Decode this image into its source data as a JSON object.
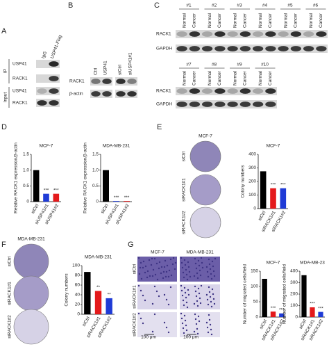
{
  "panels": {
    "A": {
      "letter": "A",
      "columns": [
        "IgG",
        "USP41-Flag"
      ],
      "rows": [
        "USP41",
        "RACK1",
        "USP41",
        "RACK1"
      ],
      "groups": [
        "IP",
        "Input"
      ]
    },
    "B": {
      "letter": "B",
      "columns": [
        "Ctrl",
        "USP41",
        "siCtrl",
        "siUSP41#1"
      ],
      "rows": [
        "RACK1",
        "β-actin"
      ]
    },
    "C": {
      "letter": "C",
      "top_groups": [
        "#1",
        "#2",
        "#3",
        "#4",
        "#5",
        "#6"
      ],
      "bottom_groups": [
        "#7",
        "#8",
        "#9",
        "#10"
      ],
      "lanes": [
        "Normal",
        "Cancer"
      ],
      "rows": [
        "RACK1",
        "GAPDH"
      ]
    },
    "D": {
      "letter": "D"
    },
    "E": {
      "letter": "E",
      "cell_line": "MCF-7",
      "conditions": [
        "siCtrl",
        "siRACK1#1",
        "siRACK1#2"
      ]
    },
    "F": {
      "letter": "F",
      "cell_line": "MDA-MB-231",
      "conditions": [
        "siCtrl",
        "siRACK1#1",
        "siRACK1#2"
      ]
    },
    "G": {
      "letter": "G",
      "cell_lines": [
        "MCF-7",
        "MDA-MB-231"
      ],
      "conditions": [
        "siCtrl",
        "siRACK1#1",
        "siRACK1#2"
      ],
      "scale_bar": "100 μm"
    }
  },
  "chart_data": [
    {
      "type": "bar",
      "title": "MCF-7",
      "ylabel": "Relative RACK1 expression/β-actin",
      "categories": [
        "siCtrl",
        "siUSP41#1",
        "siUSP41#2"
      ],
      "values": [
        1.0,
        0.25,
        0.25
      ],
      "colors": [
        "#000000",
        "#1f3bd6",
        "#e41a1c"
      ],
      "annotations": [
        null,
        "***",
        "***"
      ],
      "ylim": [
        0,
        1.5
      ],
      "yticks": [
        0,
        0.5,
        {
          "value": 1,
          "label": "1.0"
        },
        1.5
      ]
    },
    {
      "type": "bar",
      "title": "MDA-MB-231",
      "ylabel": "Relative RACK1 expression/β-actin",
      "categories": [
        "siCtrl",
        "siUSP41#1",
        "siUSP41#2"
      ],
      "values": [
        1.0,
        0.02,
        0.02
      ],
      "colors": [
        "#000000",
        "#1f3bd6",
        "#e41a1c"
      ],
      "annotations": [
        null,
        "***",
        "***"
      ],
      "ylim": [
        0,
        1.5
      ],
      "yticks": [
        0,
        0.5,
        {
          "value": 1,
          "label": "1.0"
        },
        1.5
      ]
    },
    {
      "type": "bar",
      "title": "MCF-7",
      "ylabel": "Colony numbers",
      "categories": [
        "siCtrl",
        "siRACK1#1",
        "siRACK1#2"
      ],
      "values": [
        275,
        150,
        150
      ],
      "colors": [
        "#000000",
        "#e41a1c",
        "#1f3bd6"
      ],
      "annotations": [
        null,
        "***",
        "***"
      ],
      "ylim": [
        0,
        400
      ],
      "yticks": [
        0,
        100,
        200,
        300,
        400
      ]
    },
    {
      "type": "bar",
      "title": "MDA-MB-231",
      "ylabel": "Colony numbers",
      "categories": [
        "siCtrl",
        "siRACK1#1",
        "siRACK1#2"
      ],
      "values": [
        87,
        48,
        33
      ],
      "colors": [
        "#000000",
        "#e41a1c",
        "#1f3bd6"
      ],
      "annotations": [
        null,
        "**",
        "**"
      ],
      "ylim": [
        0,
        100
      ],
      "yticks": [
        0,
        20,
        40,
        60,
        80,
        100
      ]
    },
    {
      "type": "bar",
      "title": "MCF-7",
      "ylabel": "Number of migrated cells/field",
      "categories": [
        "siCtrl",
        "siRACK1#1",
        "siRACK1#2"
      ],
      "values": [
        125,
        18,
        12
      ],
      "colors": [
        "#000000",
        "#e41a1c",
        "#1f3bd6"
      ],
      "annotations": [
        null,
        "***",
        "***"
      ],
      "ylim": [
        0,
        150
      ],
      "yticks": [
        0,
        50,
        100,
        150
      ]
    },
    {
      "type": "bar",
      "title": "MDA-MB-23",
      "ylabel": "Number of migrated cells/field",
      "categories": [
        "siCtrl",
        "siRACK1#1",
        "siRACK1#2"
      ],
      "values": [
        365,
        85,
        45
      ],
      "colors": [
        "#000000",
        "#e41a1c",
        "#1f3bd6"
      ],
      "annotations": [
        null,
        "***",
        "***"
      ],
      "ylim": [
        0,
        400
      ],
      "yticks": [
        0,
        100,
        200,
        300,
        400
      ]
    }
  ]
}
